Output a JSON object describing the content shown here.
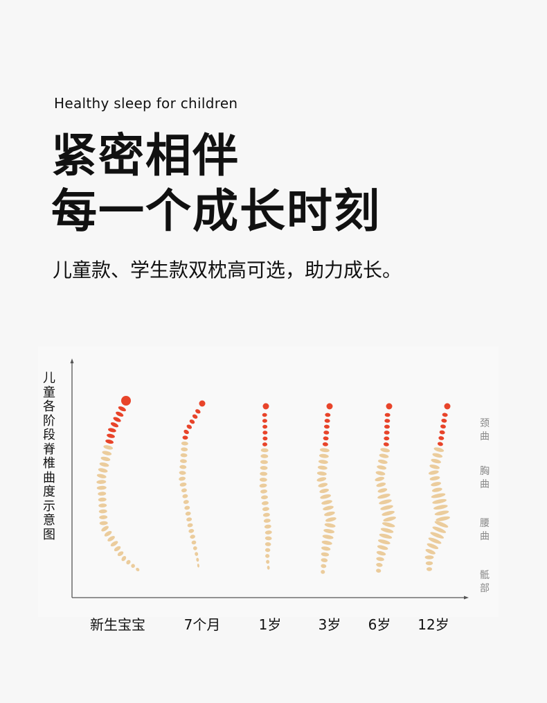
{
  "header": {
    "subtitle": "Healthy sleep for children",
    "title_line1": "紧密相伴",
    "title_line2": "每一个成长时刻",
    "description": "儿童款、学生款双枕高可选，助力成长。"
  },
  "diagram": {
    "y_axis_label": "儿童各阶段脊椎曲度示意图",
    "segments": [
      "颈曲",
      "胸曲",
      "腰曲",
      "骶部"
    ],
    "stages": [
      "新生宝宝",
      "7个月",
      "1岁",
      "3岁",
      "6岁",
      "12岁"
    ],
    "colors": {
      "cervical": "#e8442a",
      "other": "#ebcc9c",
      "axis": "#555555"
    }
  }
}
